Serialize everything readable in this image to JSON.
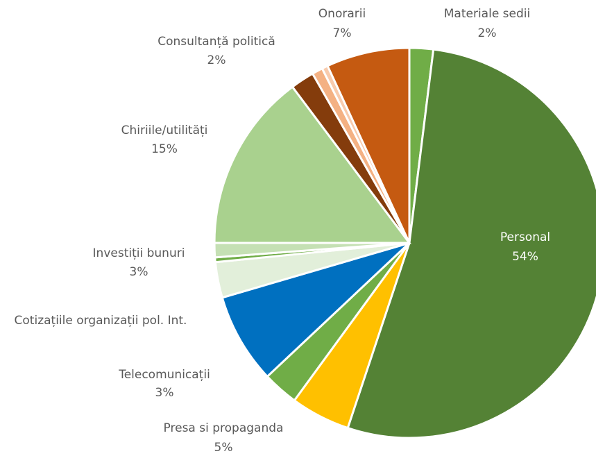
{
  "chart_data": {
    "type": "pie",
    "categories": [
      "Materiale sedii",
      "Personal",
      "Presa si propaganda",
      "Telecomunicații",
      "Cotizațiile organizații pol. Int.",
      "Investiții bunuri",
      null,
      null,
      "Chiriile/utilități",
      "Consultanță politică",
      null,
      null,
      "Onorarii"
    ],
    "values": [
      2,
      54,
      5,
      3,
      7.6,
      3,
      0.4,
      1.2,
      15,
      2,
      0.9,
      0.5,
      7
    ],
    "value_labels": [
      "2%",
      "54%",
      "5%",
      "3%",
      null,
      "3%",
      null,
      null,
      "15%",
      "2%",
      null,
      null,
      "7%"
    ],
    "colors": [
      "#70ad47",
      "#548235",
      "#ffc000",
      "#70ad47",
      "#0070c0",
      "#e2efda",
      "#70ad47",
      "#c5e0b4",
      "#a9d18e",
      "#843c0c",
      "#f4b183",
      "#f8cbad",
      "#c55a11"
    ]
  }
}
